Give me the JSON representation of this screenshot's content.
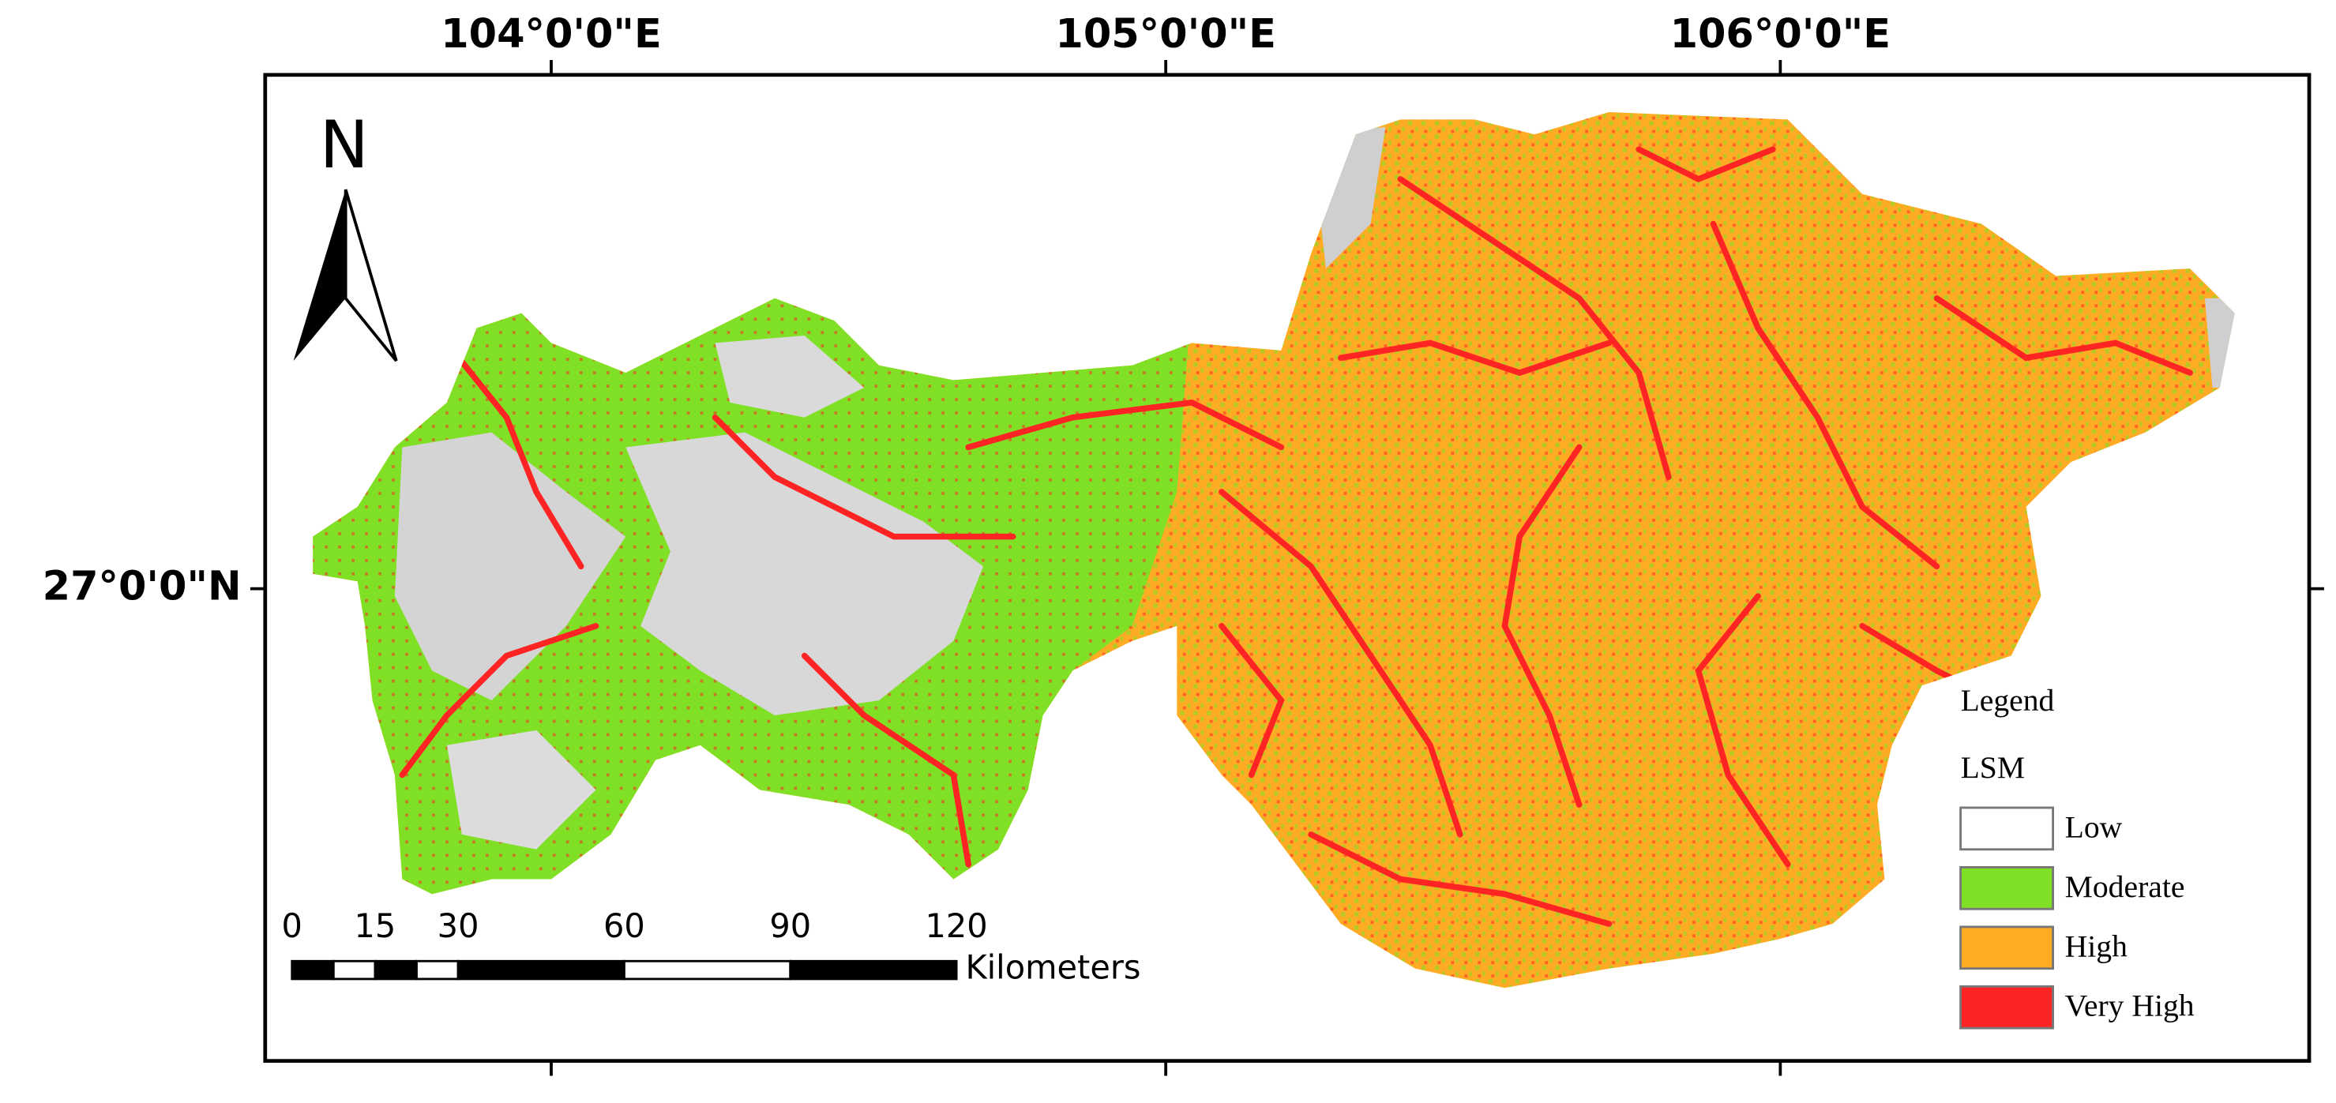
{
  "map": {
    "lon_ticks": [
      {
        "value": 104,
        "label": "104°0'0\"E"
      },
      {
        "value": 105,
        "label": "105°0'0\"E"
      },
      {
        "value": 106,
        "label": "106°0'0\"E"
      }
    ],
    "lat_ticks": [
      {
        "value": 27,
        "label": "27°0'0\"N"
      }
    ],
    "north": "N",
    "scale_bar": {
      "ticks": [
        0,
        15,
        30,
        60,
        90,
        120
      ],
      "unit": "Kilometers"
    },
    "legend": {
      "title": "Legend",
      "layer": "LSM",
      "classes": [
        {
          "name": "Low",
          "color": "#ffffff"
        },
        {
          "name": "Moderate",
          "color": "#80e026"
        },
        {
          "name": "High",
          "color": "#ffab24"
        },
        {
          "name": "Very High",
          "color": "#ff2424"
        }
      ]
    }
  }
}
